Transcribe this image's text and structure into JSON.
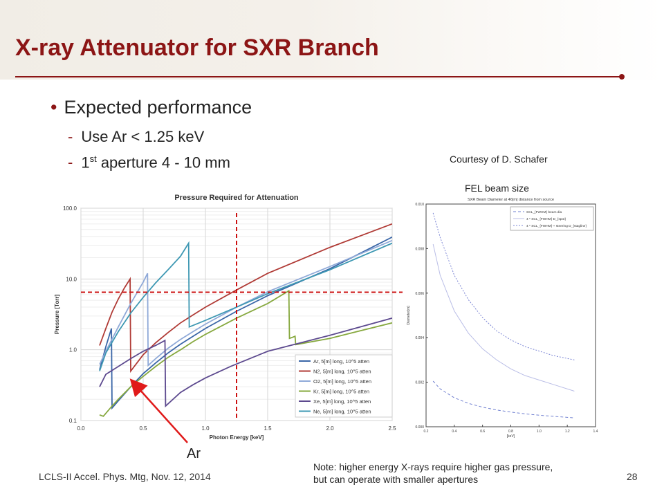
{
  "slide": {
    "title": "X-ray Attenuator for SXR Branch",
    "bullet": "Expected performance",
    "sub1": "Use Ar < 1.25 keV",
    "sub2_prefix": "1",
    "sub2_sup": "st",
    "sub2_rest": " aperture 4 - 10 mm",
    "courtesy": "Courtesy of D. Schafer",
    "fel_label": "FEL beam size",
    "arrow_label": "Ar",
    "footer": "LCLS-II Accel. Phys. Mtg, Nov. 12, 2014",
    "note": "Note: higher energy X-rays require higher gas pressure, but can operate with smaller apertures",
    "page": "28",
    "accent_color": "#8c1515"
  },
  "chart_data": [
    {
      "type": "line",
      "title": "Pressure Required for Attenuation",
      "xlabel": "Photon Energy [keV]",
      "ylabel": "Pressure [Torr]",
      "xlim": [
        0.0,
        2.5
      ],
      "ylim": [
        0.1,
        100
      ],
      "yscale": "log",
      "xticks": [
        "0.0",
        "0.5",
        "1.0",
        "1.5",
        "2.0",
        "2.5"
      ],
      "xtick_values": [
        0,
        0.5,
        1.0,
        1.5,
        2.0,
        2.5
      ],
      "yticks": [
        "0.1",
        "1.0",
        "10.0",
        "100.0"
      ],
      "ytick_values": [
        0.1,
        1,
        10,
        100
      ],
      "grid": true,
      "legend_position": "bottom-right",
      "series": [
        {
          "name": "Ar, 5[m] long, 10^5 atten",
          "color": "#3a66a7",
          "x": [
            0.15,
            0.2,
            0.245,
            0.25,
            0.3,
            0.4,
            0.5,
            0.6,
            0.7,
            0.8,
            0.9,
            1.0,
            1.25,
            1.5,
            2.0,
            2.5
          ],
          "y": [
            0.52,
            1.1,
            2.0,
            0.15,
            0.19,
            0.3,
            0.46,
            0.65,
            0.9,
            1.2,
            1.55,
            2.0,
            3.5,
            5.8,
            14,
            39
          ]
        },
        {
          "name": "N2, 5[m] long, 10^5 atten",
          "color": "#b03a35",
          "x": [
            0.15,
            0.2,
            0.25,
            0.3,
            0.35,
            0.395,
            0.4,
            0.5,
            0.6,
            0.7,
            0.8,
            0.9,
            1.0,
            1.25,
            1.5,
            2.0,
            2.5
          ],
          "y": [
            1.15,
            2.0,
            3.4,
            5.2,
            7.5,
            10.0,
            0.5,
            0.85,
            1.25,
            1.75,
            2.4,
            3.1,
            4.0,
            7.0,
            12,
            28,
            60
          ]
        },
        {
          "name": "O2, 5[m] long, 10^5 atten",
          "color": "#8fa9d8",
          "x": [
            0.15,
            0.2,
            0.3,
            0.4,
            0.5,
            0.535,
            0.54,
            0.6,
            0.7,
            0.8,
            0.9,
            1.0,
            1.25,
            1.5,
            2.0,
            2.5
          ],
          "y": [
            0.62,
            0.95,
            2.1,
            4.5,
            9.0,
            12.0,
            0.6,
            0.75,
            1.05,
            1.4,
            1.8,
            2.3,
            4.0,
            6.6,
            15,
            35
          ]
        },
        {
          "name": "Kr, 5[m] long, 10^5 atten",
          "color": "#86a83e",
          "x": [
            0.15,
            0.18,
            0.25,
            0.3,
            0.4,
            0.5,
            0.6,
            0.7,
            0.8,
            0.9,
            1.0,
            1.25,
            1.5,
            1.67,
            1.675,
            1.7,
            1.72,
            1.725,
            2.0,
            2.5
          ],
          "y": [
            0.12,
            0.115,
            0.16,
            0.2,
            0.3,
            0.42,
            0.58,
            0.78,
            1.0,
            1.3,
            1.65,
            2.8,
            4.5,
            6.8,
            1.45,
            1.5,
            1.55,
            1.18,
            1.45,
            2.4
          ]
        },
        {
          "name": "Xe, 5[m] long, 10^5 atten",
          "color": "#5d4a8f",
          "x": [
            0.15,
            0.2,
            0.3,
            0.4,
            0.5,
            0.6,
            0.675,
            0.68,
            0.8,
            0.9,
            1.0,
            1.2,
            1.5,
            2.0,
            2.5
          ],
          "y": [
            0.3,
            0.45,
            0.58,
            0.75,
            0.95,
            1.15,
            1.35,
            0.16,
            0.25,
            0.32,
            0.4,
            0.58,
            0.95,
            1.6,
            2.8
          ]
        },
        {
          "name": "Ne, 5[m] long, 10^5 atten",
          "color": "#3e98b3",
          "x": [
            0.15,
            0.2,
            0.3,
            0.4,
            0.5,
            0.6,
            0.7,
            0.8,
            0.865,
            0.87,
            1.0,
            1.25,
            1.5,
            2.0,
            2.5
          ],
          "y": [
            0.5,
            0.9,
            1.8,
            3.3,
            5.5,
            8.8,
            13.5,
            21,
            32,
            2.1,
            2.6,
            4.0,
            6.2,
            13.5,
            32
          ]
        }
      ],
      "reference_lines": [
        {
          "orientation": "vertical",
          "x": 1.25,
          "color": "#cc1111"
        },
        {
          "orientation": "horizontal",
          "y": 6.5,
          "color": "#cc1111"
        }
      ]
    },
    {
      "type": "line",
      "title": "SXR Beam Diameter at 46[m] distance from source",
      "xlabel": "[keV]",
      "ylabel": "Diameter[m]",
      "xlim": [
        0.2,
        1.4
      ],
      "ylim": [
        0.0,
        0.01
      ],
      "xticks": [
        "0.2",
        "0.4",
        "0.6",
        "0.8",
        "1.0",
        "1.2",
        "1.4"
      ],
      "xtick_values": [
        0.2,
        0.4,
        0.6,
        0.8,
        1.0,
        1.2,
        1.4
      ],
      "yticks": [
        "0.000",
        "0.002",
        "0.004",
        "0.006",
        "0.008",
        "0.010"
      ],
      "ytick_values": [
        0,
        0.002,
        0.004,
        0.006,
        0.008,
        0.01
      ],
      "legend_position": "top-right",
      "series": [
        {
          "name": "SCL_{FWHM} beam dia",
          "color": "#6f7fd0",
          "dash": "4,3",
          "x": [
            0.25,
            0.3,
            0.4,
            0.5,
            0.6,
            0.7,
            0.8,
            0.9,
            1.0,
            1.1,
            1.25
          ],
          "y": [
            0.00205,
            0.0017,
            0.0013,
            0.00105,
            0.00088,
            0.00075,
            0.00066,
            0.00058,
            0.00052,
            0.00047,
            0.0004
          ]
        },
        {
          "name": "4 * SCL_{FWHM} D_{spot}",
          "color": "#b9bde6",
          "dash": "",
          "x": [
            0.25,
            0.3,
            0.4,
            0.5,
            0.6,
            0.7,
            0.8,
            0.9,
            1.0,
            1.1,
            1.25
          ],
          "y": [
            0.0082,
            0.0068,
            0.0052,
            0.0042,
            0.0035,
            0.003,
            0.0026,
            0.0023,
            0.0021,
            0.0019,
            0.0016
          ]
        },
        {
          "name": "4 * SCL_{FWHM} + steering D_{stagline}",
          "color": "#7a84d4",
          "dash": "2,2",
          "x": [
            0.25,
            0.3,
            0.4,
            0.5,
            0.6,
            0.7,
            0.8,
            0.9,
            1.0,
            1.1,
            1.25
          ],
          "y": [
            0.0096,
            0.0085,
            0.0068,
            0.0057,
            0.0049,
            0.0043,
            0.0039,
            0.0036,
            0.0034,
            0.0032,
            0.003
          ]
        }
      ]
    }
  ]
}
